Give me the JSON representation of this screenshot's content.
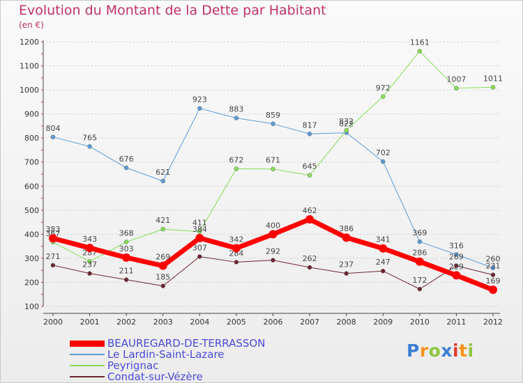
{
  "chart_data": {
    "type": "line",
    "title": "Evolution du Montant de la Dette par Habitant",
    "subtitle": "(en €)",
    "x": [
      "2000",
      "2001",
      "2002",
      "2003",
      "2004",
      "2005",
      "2006",
      "2007",
      "2008",
      "2009",
      "2010",
      "2011",
      "2012"
    ],
    "y_ticks": [
      "100",
      "200",
      "300",
      "400",
      "500",
      "600",
      "700",
      "800",
      "900",
      "1000",
      "1100",
      "1200"
    ],
    "ylim": [
      100,
      1200
    ],
    "grid": "horizontal dashed",
    "legend_position": "bottom-left",
    "series": [
      {
        "name": "Le Lardin-Saint-Lazare",
        "color": "#5b9bd5",
        "values": [
          804,
          765,
          676,
          621,
          923,
          883,
          859,
          817,
          822,
          702,
          369,
          316,
          260
        ],
        "width": 1
      },
      {
        "name": "Peyrignac",
        "color": "#88dd55",
        "values": [
          367,
          287,
          368,
          421,
          411,
          672,
          671,
          645,
          832,
          972,
          1161,
          1007,
          1011
        ],
        "width": 1
      },
      {
        "name": "Condat-sur-Vézère",
        "color": "#6b2530",
        "values": [
          271,
          237,
          211,
          185,
          307,
          284,
          292,
          262,
          237,
          247,
          172,
          269,
          231
        ],
        "width": 1
      },
      {
        "name": "BEAUREGARD-DE-TERRASSON",
        "color": "#ff0000",
        "values": [
          383,
          343,
          303,
          269,
          384,
          342,
          400,
          462,
          386,
          341,
          286,
          229,
          169
        ],
        "width": 7
      }
    ]
  },
  "legend": {
    "items": [
      {
        "label": "BEAUREGARD-DE-TERRASSON",
        "color": "#ff0000"
      },
      {
        "label": "Le Lardin-Saint-Lazare",
        "color": "#5b9bd5"
      },
      {
        "label": "Peyrignac",
        "color": "#88dd55"
      },
      {
        "label": "Condat-sur-Vézère",
        "color": "#6b2530"
      }
    ]
  },
  "logo": {
    "letters": [
      "P",
      "r",
      "o",
      "x",
      "i",
      "t",
      "i"
    ],
    "colors": [
      "#3a7fd5",
      "#f7941d",
      "#8dc63f",
      "#3a7fd5",
      "#e63b2e",
      "#f7941d",
      "#8dc63f"
    ]
  }
}
